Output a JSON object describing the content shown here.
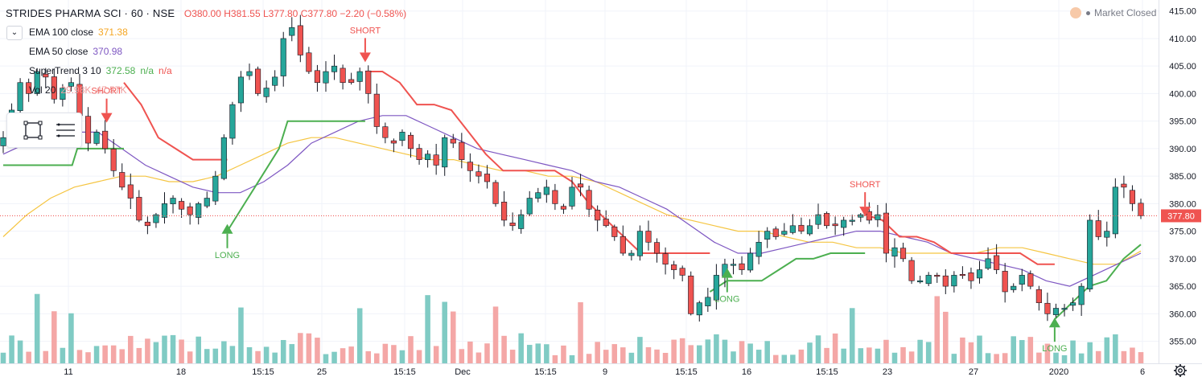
{
  "header": {
    "symbol": "STRIDES PHARMA SCI · 60 · NSE",
    "open": "O380.00",
    "high": "H381.55",
    "low": "L377.80",
    "close": "C377.80",
    "change": "−2.20 (−0.58%)"
  },
  "market_status": "Market Closed",
  "collapse_icon": "chevron-down-icon",
  "indicators": [
    {
      "name": "EMA 100 close",
      "values": [
        "371.38"
      ],
      "colors": [
        "#f5a623"
      ]
    },
    {
      "name": "EMA 50 close",
      "values": [
        "370.98"
      ],
      "colors": [
        "#7e57c2"
      ]
    },
    {
      "name": "SuperTrend 3 10",
      "values": [
        "372.58",
        "n/a",
        "n/a"
      ],
      "colors": [
        "#4caf50",
        "#4caf50",
        "#ef5350"
      ]
    },
    {
      "name": "Vol 20",
      "values": [
        "29.98K",
        "47.57K"
      ],
      "colors": [
        "#ef9a9a",
        "#ef9a9a"
      ]
    }
  ],
  "toolbox_icons": [
    "rectangle-select-icon",
    "list-lines-icon"
  ],
  "colors": {
    "up": "#26a69a",
    "down": "#ef5350",
    "ema100": "#f5c542",
    "ema50": "#7e57c2",
    "st_up": "#4caf50",
    "st_down": "#ef5350",
    "vol_up": "#80cbc4",
    "vol_down": "#f4a7a6",
    "price_label": "#ef5350"
  },
  "chart_data": {
    "type": "candlestick",
    "title": "STRIDES PHARMA SCI · 60 · NSE",
    "ylim": [
      351,
      417
    ],
    "y_ticks": [
      355,
      360,
      365,
      370,
      375,
      380,
      385,
      390,
      395,
      400,
      405,
      410,
      415
    ],
    "x_ticks": [
      "11",
      "18",
      "15:15",
      "25",
      "15:15",
      "Dec",
      "15:15",
      "9",
      "15:15",
      "16",
      "15:15",
      "23",
      "27",
      "2020",
      "6"
    ],
    "last_price": "377.80",
    "close_path": [
      392,
      397,
      402,
      400,
      404,
      403,
      399,
      401,
      402,
      396,
      391,
      393,
      390,
      386,
      383,
      381,
      377,
      376,
      378,
      380,
      381,
      379,
      378,
      380,
      381,
      385,
      392,
      398,
      403,
      404,
      400,
      401,
      403,
      410,
      412,
      407,
      404,
      402,
      404,
      405,
      402,
      402,
      404,
      400,
      394,
      392,
      391,
      393,
      390,
      388,
      389,
      387,
      392,
      391,
      388,
      386,
      385,
      384,
      380,
      377,
      376,
      378,
      381,
      382,
      383,
      380,
      379,
      383,
      383,
      379,
      377,
      376,
      374,
      371,
      371,
      375,
      373,
      371,
      369,
      368,
      367,
      360,
      362,
      363,
      367,
      369,
      369,
      368,
      371,
      373,
      375,
      374,
      375,
      376,
      375,
      376,
      378,
      376,
      376,
      377,
      377,
      378,
      377,
      378,
      371,
      372,
      370,
      366,
      366,
      367,
      367,
      365,
      367,
      367,
      366,
      368,
      370,
      368,
      364,
      365,
      367,
      365,
      362,
      360,
      361,
      361,
      362,
      365,
      377,
      374,
      375,
      383,
      383,
      380,
      377.8
    ],
    "ema100": [
      374,
      378,
      381,
      383,
      384,
      385,
      385,
      384,
      384,
      385,
      387,
      389,
      391,
      392,
      392,
      391,
      390,
      389,
      388,
      388,
      387,
      386,
      386,
      385,
      385,
      384,
      382,
      380,
      378,
      377,
      376,
      375,
      375,
      374,
      373,
      373,
      372,
      372,
      371,
      371,
      371,
      371,
      372,
      372,
      371,
      370,
      369,
      369,
      371.4
    ],
    "ema50": [
      389,
      391,
      393,
      393,
      393,
      390,
      387,
      385,
      383,
      382,
      382,
      384,
      387,
      391,
      393,
      395,
      396,
      396,
      394,
      392,
      390,
      389,
      388,
      387,
      386,
      384,
      383,
      381,
      379,
      376,
      373,
      371,
      371,
      372,
      373,
      374,
      375,
      375,
      374,
      373,
      371,
      370,
      369,
      368,
      366,
      365,
      367,
      369,
      371
    ],
    "supertrend_segments": [
      {
        "color": "#4caf50",
        "points": [
          [
            0,
            387
          ],
          [
            1,
            387
          ],
          [
            2,
            387
          ],
          [
            3,
            387
          ],
          [
            4,
            387
          ],
          [
            4.3,
            390
          ],
          [
            6,
            390
          ],
          [
            7,
            390
          ]
        ]
      },
      {
        "color": "#ef5350",
        "points": [
          [
            7,
            402
          ],
          [
            8,
            398
          ],
          [
            9,
            392
          ],
          [
            10,
            390
          ],
          [
            11,
            388
          ],
          [
            12,
            388
          ],
          [
            13,
            388
          ]
        ]
      },
      {
        "color": "#4caf50",
        "points": [
          [
            13,
            375
          ],
          [
            14,
            380
          ],
          [
            15,
            385
          ],
          [
            16,
            390
          ],
          [
            16.5,
            395
          ],
          [
            18,
            395
          ],
          [
            20,
            395
          ],
          [
            21,
            395
          ]
        ]
      },
      {
        "color": "#ef5350",
        "points": [
          [
            21,
            404
          ],
          [
            22,
            404
          ],
          [
            23,
            402
          ],
          [
            24,
            398
          ],
          [
            25,
            398
          ],
          [
            26,
            397
          ],
          [
            27,
            393
          ],
          [
            28,
            389
          ],
          [
            29,
            386
          ],
          [
            30,
            386
          ],
          [
            31,
            386
          ],
          [
            32,
            386
          ],
          [
            33,
            384
          ],
          [
            34,
            380
          ],
          [
            35,
            377
          ],
          [
            36,
            374
          ],
          [
            37,
            371
          ],
          [
            38,
            371
          ],
          [
            39,
            371
          ],
          [
            40,
            371
          ],
          [
            41,
            371
          ]
        ]
      },
      {
        "color": "#4caf50",
        "points": [
          [
            41,
            364
          ],
          [
            42,
            366
          ],
          [
            43,
            366
          ],
          [
            44,
            366
          ],
          [
            45,
            368
          ],
          [
            46,
            370
          ],
          [
            47,
            370
          ],
          [
            48,
            371
          ],
          [
            49,
            371
          ],
          [
            50,
            371
          ]
        ]
      },
      {
        "color": "#ef5350",
        "points": [
          [
            50,
            378
          ],
          [
            51,
            377
          ],
          [
            52,
            374
          ],
          [
            53,
            374
          ],
          [
            54,
            373
          ],
          [
            55,
            371
          ],
          [
            56,
            371
          ],
          [
            57,
            371
          ],
          [
            58,
            371
          ],
          [
            59,
            371
          ],
          [
            60,
            369
          ],
          [
            61,
            369
          ]
        ]
      },
      {
        "color": "#4caf50",
        "points": [
          [
            61,
            359
          ],
          [
            62,
            362
          ],
          [
            63,
            365
          ],
          [
            64,
            366
          ],
          [
            65,
            370
          ],
          [
            66,
            372.58
          ]
        ]
      }
    ],
    "signals": [
      {
        "label": "SHORT",
        "index": 6,
        "price": 395
      },
      {
        "label": "LONG",
        "index": 13,
        "price": 376
      },
      {
        "label": "SHORT",
        "index": 21,
        "price": 406
      },
      {
        "label": "LONG",
        "index": 42,
        "price": 368
      },
      {
        "label": "SHORT",
        "index": 50,
        "price": 378
      },
      {
        "label": "LONG",
        "index": 61,
        "price": 359
      }
    ]
  }
}
